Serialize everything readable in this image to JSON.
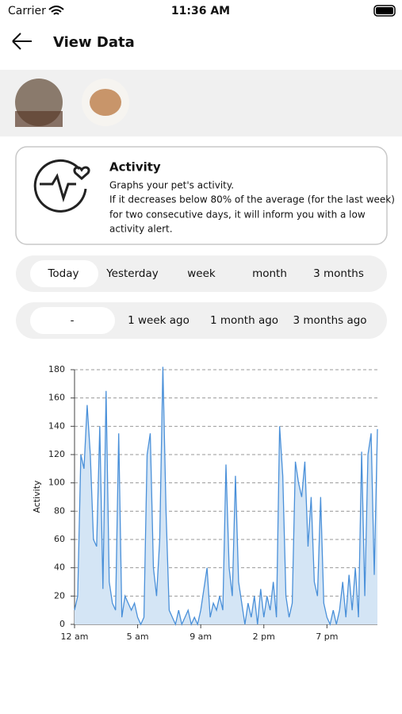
{
  "status_bar": {
    "carrier": "Carrier",
    "time": "11:36 AM"
  },
  "header": {
    "title": "View Data"
  },
  "info_card": {
    "title": "Activity",
    "lines": [
      "Graphs your pet's activity.",
      "If it decreases below 80% of the average (for the last week)",
      "for two consecutive days, it will inform you with a low",
      "activity alert."
    ]
  },
  "period_tabs": [
    "Today",
    "Yesterday",
    "week",
    "month",
    "3 months"
  ],
  "offset_tabs": [
    "-",
    "1 week ago",
    "1 month ago",
    "3 months ago"
  ],
  "chart_data": {
    "type": "area",
    "y_label": "Activity",
    "color": "#4a90d9",
    "fill": "#d4e5f5",
    "x": [
      0,
      1,
      2,
      3,
      4,
      5,
      6,
      7,
      8,
      9,
      10,
      11,
      12,
      13,
      14,
      15,
      16,
      17,
      18,
      19,
      20,
      21,
      22,
      23,
      24,
      25,
      26,
      27,
      28,
      29,
      30,
      31,
      32,
      33,
      34,
      35,
      36,
      37,
      38,
      39,
      40,
      41,
      42,
      43,
      44,
      45,
      46,
      47,
      48,
      49,
      50,
      51,
      52,
      53,
      54,
      55,
      56,
      57,
      58,
      59,
      60,
      61,
      62,
      63,
      64,
      65,
      66,
      67,
      68,
      69,
      70,
      71,
      72,
      73,
      74,
      75,
      76,
      77,
      78,
      79,
      80,
      81,
      82,
      83,
      84,
      85,
      86,
      87,
      88,
      89,
      90,
      91,
      92,
      93,
      94,
      95,
      96
    ],
    "values": [
      10,
      20,
      120,
      110,
      155,
      120,
      60,
      55,
      140,
      25,
      165,
      30,
      15,
      10,
      135,
      5,
      20,
      15,
      10,
      15,
      5,
      0,
      5,
      120,
      135,
      40,
      20,
      60,
      182,
      80,
      10,
      5,
      0,
      10,
      0,
      5,
      10,
      0,
      5,
      0,
      10,
      25,
      40,
      5,
      15,
      10,
      20,
      10,
      113,
      40,
      20,
      105,
      30,
      15,
      0,
      15,
      5,
      20,
      0,
      25,
      5,
      20,
      10,
      30,
      5,
      140,
      105,
      20,
      5,
      15,
      115,
      100,
      90,
      115,
      55,
      90,
      30,
      20,
      90,
      15,
      5,
      0,
      10,
      0,
      10,
      30,
      5,
      35,
      10,
      40,
      5,
      122,
      20,
      120,
      135,
      35,
      138
    ],
    "xlim": [
      0,
      96
    ],
    "xticks": [
      {
        "value": 0,
        "label": "12 am"
      },
      {
        "value": 20,
        "label": "5 am"
      },
      {
        "value": 40,
        "label": "9 am"
      },
      {
        "value": 60,
        "label": "2 pm"
      },
      {
        "value": 80,
        "label": "7 pm"
      }
    ],
    "ylim": [
      0,
      180
    ],
    "yticks": [
      0,
      20,
      40,
      60,
      80,
      100,
      120,
      140,
      160,
      180
    ],
    "grid": true
  }
}
